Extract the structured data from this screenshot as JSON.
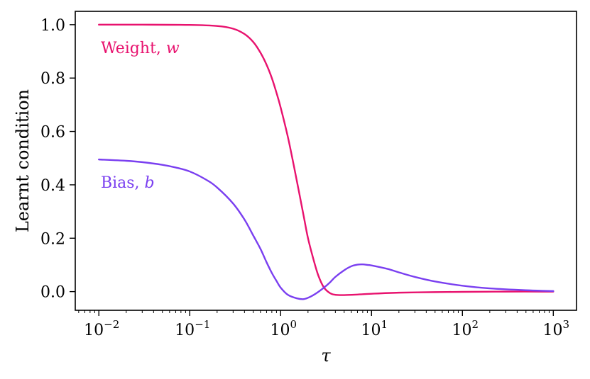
{
  "chart_data": {
    "type": "line",
    "title": "",
    "xlabel": "τ",
    "ylabel": "Learnt condition",
    "xscale": "log",
    "xlim": [
      0.0055,
      1800
    ],
    "ylim": [
      -0.07,
      1.05
    ],
    "x_ticks": [
      {
        "value": 0.01,
        "base": "10",
        "exp": "−2"
      },
      {
        "value": 0.1,
        "base": "10",
        "exp": "−1"
      },
      {
        "value": 1,
        "base": "10",
        "exp": "0"
      },
      {
        "value": 10,
        "base": "10",
        "exp": "1"
      },
      {
        "value": 100,
        "base": "10",
        "exp": "2"
      },
      {
        "value": 1000,
        "base": "10",
        "exp": "3"
      }
    ],
    "y_ticks": [
      {
        "value": 0.0,
        "label": "0.0"
      },
      {
        "value": 0.2,
        "label": "0.2"
      },
      {
        "value": 0.4,
        "label": "0.4"
      },
      {
        "value": 0.6,
        "label": "0.6"
      },
      {
        "value": 0.8,
        "label": "0.8"
      },
      {
        "value": 1.0,
        "label": "1.0"
      }
    ],
    "grid": false,
    "series": [
      {
        "name": "Weight",
        "symbol": "w",
        "color": "#e8126e",
        "label_anchor": {
          "x": 0.0105,
          "y": 0.915
        },
        "points": [
          [
            0.01,
            1.0
          ],
          [
            0.03,
            1.0
          ],
          [
            0.1,
            0.999
          ],
          [
            0.2,
            0.995
          ],
          [
            0.3,
            0.985
          ],
          [
            0.4,
            0.965
          ],
          [
            0.5,
            0.935
          ],
          [
            0.6,
            0.895
          ],
          [
            0.7,
            0.85
          ],
          [
            0.8,
            0.8
          ],
          [
            0.9,
            0.745
          ],
          [
            1.0,
            0.69
          ],
          [
            1.2,
            0.58
          ],
          [
            1.4,
            0.47
          ],
          [
            1.6,
            0.37
          ],
          [
            1.8,
            0.28
          ],
          [
            2.0,
            0.2
          ],
          [
            2.3,
            0.12
          ],
          [
            2.6,
            0.06
          ],
          [
            3.0,
            0.015
          ],
          [
            3.5,
            -0.006
          ],
          [
            4.0,
            -0.012
          ],
          [
            5.0,
            -0.013
          ],
          [
            7.0,
            -0.011
          ],
          [
            10,
            -0.008
          ],
          [
            20,
            -0.004
          ],
          [
            50,
            -0.002
          ],
          [
            100,
            -0.001
          ],
          [
            300,
            0.0
          ],
          [
            1000,
            0.0
          ]
        ]
      },
      {
        "name": "Bias",
        "symbol": "b",
        "color": "#7a3ff0",
        "label_anchor": {
          "x": 0.0105,
          "y": 0.41
        },
        "points": [
          [
            0.01,
            0.495
          ],
          [
            0.02,
            0.49
          ],
          [
            0.03,
            0.485
          ],
          [
            0.05,
            0.475
          ],
          [
            0.07,
            0.465
          ],
          [
            0.1,
            0.45
          ],
          [
            0.15,
            0.42
          ],
          [
            0.2,
            0.39
          ],
          [
            0.3,
            0.33
          ],
          [
            0.4,
            0.27
          ],
          [
            0.5,
            0.21
          ],
          [
            0.6,
            0.16
          ],
          [
            0.7,
            0.11
          ],
          [
            0.8,
            0.07
          ],
          [
            0.9,
            0.04
          ],
          [
            1.0,
            0.015
          ],
          [
            1.2,
            -0.012
          ],
          [
            1.5,
            -0.025
          ],
          [
            1.8,
            -0.028
          ],
          [
            2.1,
            -0.02
          ],
          [
            2.5,
            -0.005
          ],
          [
            3.0,
            0.015
          ],
          [
            3.5,
            0.035
          ],
          [
            4.0,
            0.055
          ],
          [
            5.0,
            0.08
          ],
          [
            6.0,
            0.095
          ],
          [
            7.0,
            0.101
          ],
          [
            8.0,
            0.102
          ],
          [
            9.0,
            0.1
          ],
          [
            10,
            0.098
          ],
          [
            15,
            0.085
          ],
          [
            20,
            0.072
          ],
          [
            30,
            0.055
          ],
          [
            50,
            0.038
          ],
          [
            100,
            0.022
          ],
          [
            200,
            0.012
          ],
          [
            500,
            0.005
          ],
          [
            1000,
            0.002
          ]
        ]
      }
    ]
  }
}
